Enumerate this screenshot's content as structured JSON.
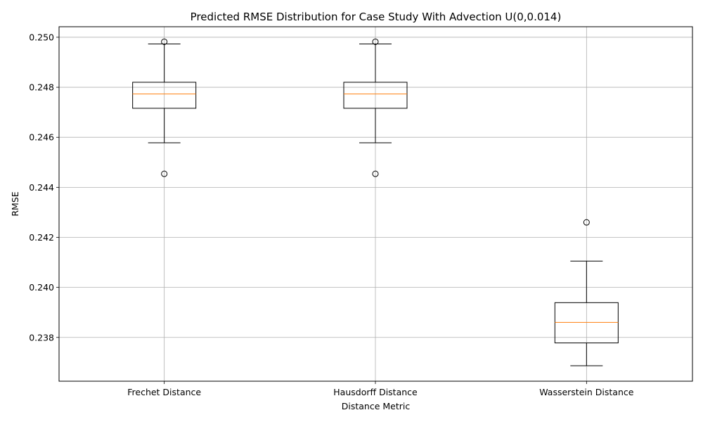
{
  "chart_data": {
    "type": "box",
    "title": "Predicted RMSE Distribution for Case Study With Advection U(0,0.014)",
    "xlabel": "Distance Metric",
    "ylabel": "RMSE",
    "ylim": [
      0.23625,
      0.25042
    ],
    "yticks": [
      0.238,
      0.24,
      0.242,
      0.244,
      0.246,
      0.248,
      0.25
    ],
    "ytick_labels": [
      "0.238",
      "0.240",
      "0.242",
      "0.244",
      "0.246",
      "0.248",
      "0.250"
    ],
    "grid": true,
    "categories": [
      "Frechet Distance",
      "Hausdorff Distance",
      "Wasserstein Distance"
    ],
    "boxes": [
      {
        "whisker_low": 0.24578,
        "q1": 0.24716,
        "median": 0.24773,
        "q3": 0.2482,
        "whisker_high": 0.24973,
        "outliers": [
          0.24982,
          0.24454
        ]
      },
      {
        "whisker_low": 0.24578,
        "q1": 0.24716,
        "median": 0.24773,
        "q3": 0.2482,
        "whisker_high": 0.24973,
        "outliers": [
          0.24982,
          0.24454
        ]
      },
      {
        "whisker_low": 0.23687,
        "q1": 0.23778,
        "median": 0.2386,
        "q3": 0.23939,
        "whisker_high": 0.24105,
        "outliers": [
          0.2426
        ]
      }
    ],
    "colors": {
      "box": "#000000",
      "median": "#ff7f0e",
      "grid": "#b0b0b0"
    }
  }
}
